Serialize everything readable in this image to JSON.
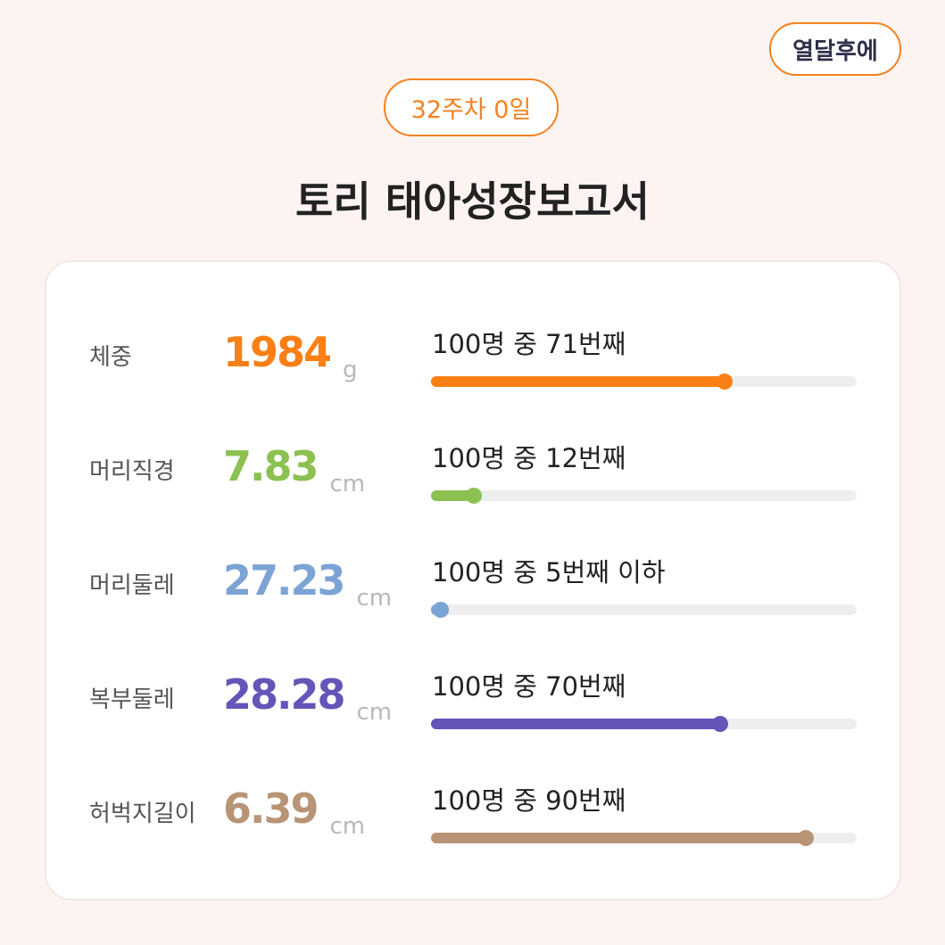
{
  "header": {
    "button": "열달후에",
    "week": "32주차 0일",
    "title": "토리 태아성장보고서"
  },
  "bar_range": [
    0,
    100
  ],
  "rows": [
    {
      "label": "체중",
      "value": 1984,
      "unit": "g",
      "rank": "100명 중 71번째",
      "position": 69,
      "color": "#fa7f14"
    },
    {
      "label": "머리직경",
      "value": 7.83,
      "unit": "cm",
      "rank": "100명 중 12번째",
      "position": 10,
      "color": "#8cc152"
    },
    {
      "label": "머리둘레",
      "value": 27.23,
      "unit": "cm",
      "rank": "100명 중 5번째 이하",
      "position": 2.3,
      "color": "#7ba3d4"
    },
    {
      "label": "복부둘레",
      "value": 28.28,
      "unit": "cm",
      "rank": "100명 중 70번째",
      "position": 68,
      "color": "#6455b8"
    },
    {
      "label": "허벅지길이",
      "value": 6.39,
      "unit": "cm",
      "rank": "100명 중 90번째",
      "position": 88,
      "color": "#b89476"
    }
  ]
}
